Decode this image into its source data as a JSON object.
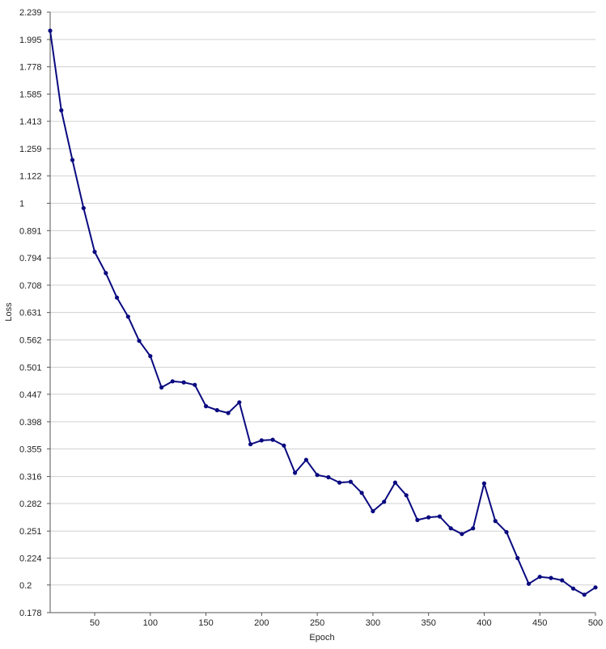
{
  "chart_data": {
    "type": "line",
    "title": "",
    "xlabel": "Epoch",
    "ylabel": "Loss",
    "xlim": [
      10,
      500
    ],
    "ylim": [
      0.178,
      2.239
    ],
    "y_scale": "log",
    "grid": {
      "horizontal": true,
      "vertical": false
    },
    "x_ticks": [
      50,
      100,
      150,
      200,
      250,
      300,
      350,
      400,
      450,
      500
    ],
    "y_ticks": [
      "0.178",
      "0.2",
      "0.224",
      "0.251",
      "0.282",
      "0.316",
      "0.355",
      "0.398",
      "0.447",
      "0.501",
      "0.562",
      "0.631",
      "0.708",
      "0.794",
      "0.891",
      "1",
      "1.122",
      "1.259",
      "1.413",
      "1.585",
      "1.778",
      "1.995",
      "2.239"
    ],
    "series": [
      {
        "color": "#0a0a80",
        "x": [
          10,
          20,
          30,
          40,
          50,
          60,
          70,
          80,
          90,
          100,
          110,
          120,
          130,
          140,
          150,
          160,
          170,
          180,
          190,
          200,
          210,
          220,
          230,
          240,
          250,
          260,
          270,
          280,
          290,
          300,
          310,
          320,
          330,
          340,
          350,
          360,
          370,
          380,
          390,
          400,
          410,
          420,
          430,
          440,
          450,
          460,
          470,
          480,
          490,
          500
        ],
        "values": [
          2.07,
          1.48,
          1.2,
          0.98,
          0.815,
          0.745,
          0.672,
          0.62,
          0.56,
          0.525,
          0.46,
          0.472,
          0.47,
          0.465,
          0.425,
          0.418,
          0.413,
          0.432,
          0.362,
          0.368,
          0.369,
          0.36,
          0.321,
          0.339,
          0.318,
          0.315,
          0.308,
          0.309,
          0.295,
          0.273,
          0.284,
          0.308,
          0.292,
          0.263,
          0.266,
          0.267,
          0.254,
          0.248,
          0.254,
          0.307,
          0.262,
          0.25,
          0.224,
          0.201,
          0.207,
          0.206,
          0.204,
          0.197,
          0.192,
          0.198
        ]
      }
    ]
  }
}
